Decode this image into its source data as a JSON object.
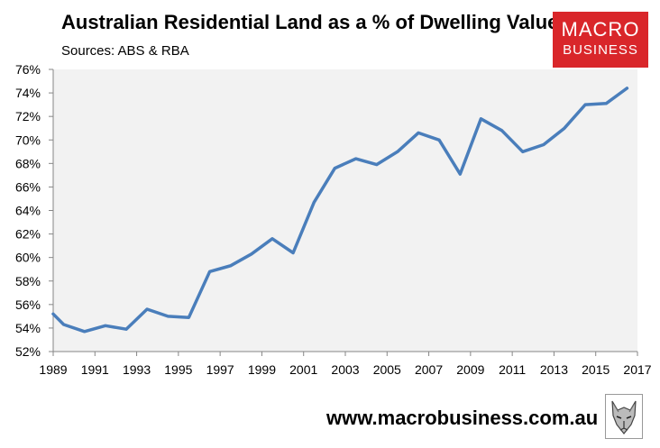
{
  "header": {
    "title": "Australian Residential Land as a % of Dwelling Values",
    "subtitle": "Sources: ABS & RBA"
  },
  "logo": {
    "line1": "MACRO",
    "line2": "BUSINESS"
  },
  "footer": {
    "url": "www.macrobusiness.com.au"
  },
  "colors": {
    "line": "#4a7ebb",
    "plot_bg": "#f2f2f2",
    "logo_bg": "#d9262a"
  },
  "chart_data": {
    "type": "line",
    "title": "Australian Residential Land as a % of Dwelling Values",
    "subtitle": "Sources: ABS & RBA",
    "xlim": [
      1989,
      2017
    ],
    "ylim": [
      52,
      76
    ],
    "x_ticks": [
      "1989",
      "1991",
      "1993",
      "1995",
      "1997",
      "1999",
      "2001",
      "2003",
      "2005",
      "2007",
      "2009",
      "2011",
      "2013",
      "2015",
      "2017"
    ],
    "y_ticks": [
      "52%",
      "54%",
      "56%",
      "58%",
      "60%",
      "62%",
      "64%",
      "66%",
      "68%",
      "70%",
      "72%",
      "74%",
      "76%"
    ],
    "series": [
      {
        "x": [
          1989,
          1989.5,
          1990.5,
          1991.5,
          1992.5,
          1993.5,
          1994.5,
          1995.5,
          1996.5,
          1997.5,
          1998.5,
          1999.5,
          2000.5,
          2001.5,
          2002.5,
          2003.5,
          2004.5,
          2005.5,
          2006.5,
          2007.5,
          2008.5,
          2009.5,
          2010.5,
          2011.5,
          2012.5,
          2013.5,
          2014.5,
          2015.5,
          2016.5
        ],
        "values": [
          55.2,
          54.3,
          53.7,
          54.2,
          53.9,
          55.6,
          55.0,
          54.9,
          58.8,
          59.3,
          60.3,
          61.6,
          60.4,
          64.7,
          67.6,
          68.4,
          67.9,
          69.0,
          70.6,
          70.0,
          67.1,
          71.8,
          70.8,
          69.0,
          69.6,
          71.0,
          73.0,
          73.1,
          74.4
        ]
      }
    ],
    "grid": false,
    "legend": "none"
  }
}
